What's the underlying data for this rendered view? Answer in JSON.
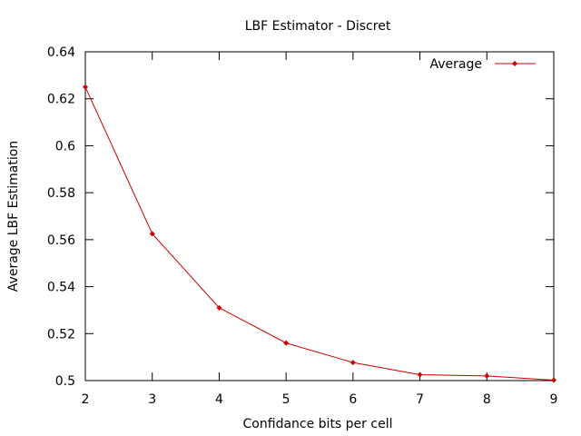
{
  "chart_data": {
    "type": "line",
    "title": "LBF Estimator - Discret",
    "xlabel": "Confidance bits per cell",
    "ylabel": "Average LBF Estimation",
    "xlim": [
      2,
      9
    ],
    "ylim": [
      0.5,
      0.64
    ],
    "xticks": [
      "2",
      "3",
      "4",
      "5",
      "6",
      "7",
      "8",
      "9"
    ],
    "yticks": [
      "0.5",
      "0.52",
      "0.54",
      "0.56",
      "0.58",
      "0.6",
      "0.62",
      "0.64"
    ],
    "grid": false,
    "legend_position": "top-right",
    "series": [
      {
        "name": "Average",
        "color": "#cc0000",
        "marker": "diamond",
        "x": [
          2,
          3,
          4,
          5,
          6,
          7,
          8,
          9
        ],
        "y": [
          0.625,
          0.5625,
          0.531,
          0.516,
          0.5077,
          0.5025,
          0.502,
          0.5002
        ]
      }
    ]
  }
}
